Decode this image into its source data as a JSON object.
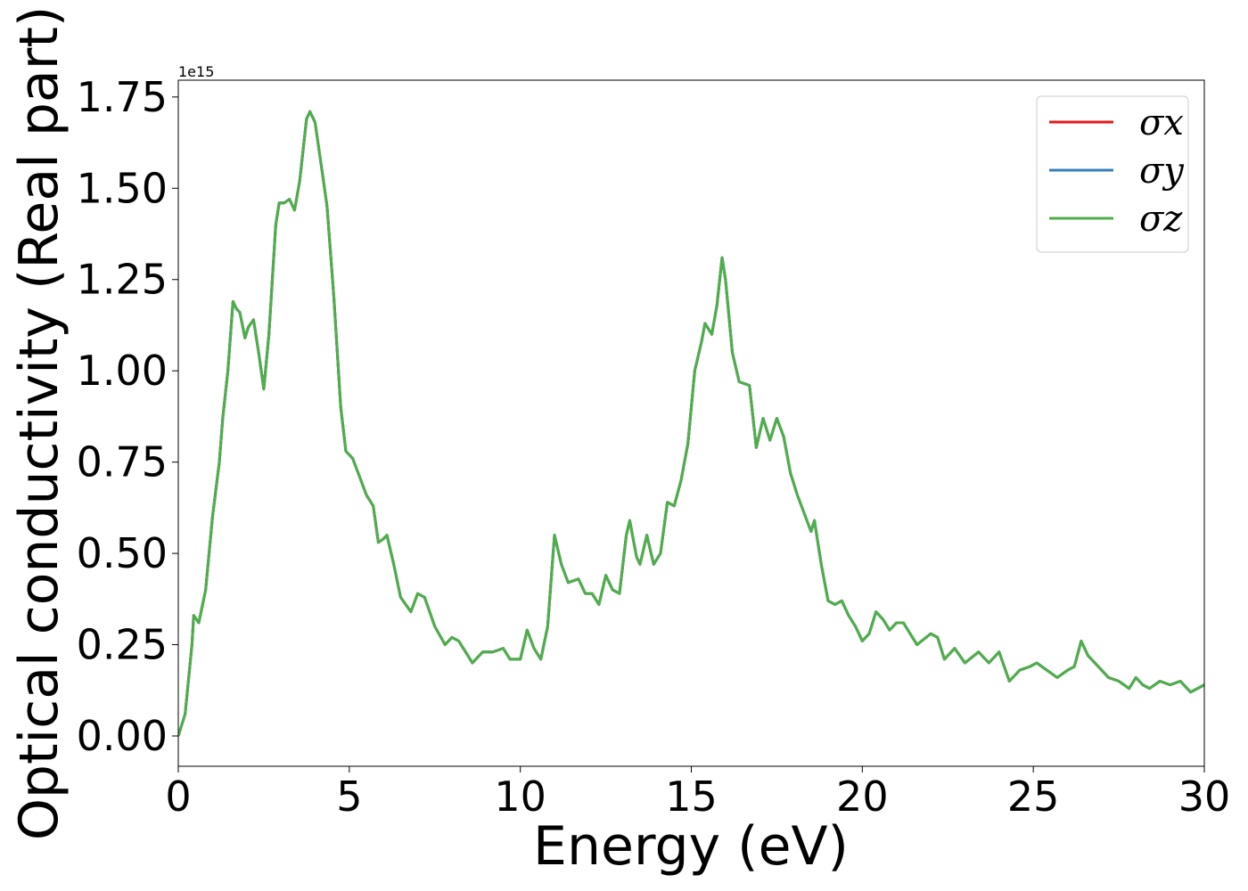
{
  "chart_data": {
    "type": "line",
    "x_label": "Energy (eV)",
    "y_label": "Optical conductivity (Real part)",
    "y_offset_label": "1e15",
    "xlim": [
      0,
      30
    ],
    "ylim": [
      -0.083,
      1.796
    ],
    "xticks": [
      0,
      5,
      10,
      15,
      20,
      25,
      30
    ],
    "yticks": [
      {
        "value": 0,
        "label": "0.00"
      },
      {
        "value": 0.25,
        "label": "0.25"
      },
      {
        "value": 0.5,
        "label": "0.50"
      },
      {
        "value": 0.75,
        "label": "0.75"
      },
      {
        "value": 1,
        "label": "1.00"
      },
      {
        "value": 1.25,
        "label": "1.25"
      },
      {
        "value": 1.5,
        "label": "1.50"
      },
      {
        "value": 1.75,
        "label": "1.75"
      }
    ],
    "grid": false,
    "legend": "upper right",
    "x": [
      0,
      0.2,
      0.4,
      0.45,
      0.6,
      0.8,
      1.0,
      1.2,
      1.3,
      1.45,
      1.6,
      1.7,
      1.8,
      1.95,
      2.05,
      2.2,
      2.35,
      2.5,
      2.65,
      2.85,
      2.95,
      3.1,
      3.25,
      3.4,
      3.55,
      3.75,
      3.85,
      4.0,
      4.2,
      4.35,
      4.55,
      4.75,
      4.9,
      5.1,
      5.3,
      5.5,
      5.7,
      5.85,
      6.0,
      6.1,
      6.3,
      6.5,
      6.8,
      7.0,
      7.2,
      7.5,
      7.8,
      8.0,
      8.2,
      8.4,
      8.6,
      8.9,
      9.2,
      9.5,
      9.7,
      10.0,
      10.2,
      10.4,
      10.6,
      10.8,
      11.0,
      11.2,
      11.4,
      11.7,
      11.9,
      12.1,
      12.3,
      12.5,
      12.7,
      12.9,
      13.1,
      13.2,
      13.4,
      13.5,
      13.7,
      13.9,
      14.1,
      14.3,
      14.5,
      14.7,
      14.9,
      15.1,
      15.3,
      15.4,
      15.6,
      15.75,
      15.9,
      16.0,
      16.2,
      16.4,
      16.7,
      16.9,
      17.1,
      17.3,
      17.5,
      17.7,
      17.9,
      18.1,
      18.3,
      18.5,
      18.6,
      18.8,
      19.0,
      19.2,
      19.4,
      19.6,
      19.8,
      20.0,
      20.2,
      20.4,
      20.6,
      20.8,
      21.0,
      21.2,
      21.6,
      22.0,
      22.2,
      22.4,
      22.7,
      23.0,
      23.4,
      23.7,
      24.0,
      24.3,
      24.6,
      24.9,
      25.1,
      25.4,
      25.7,
      26.0,
      26.2,
      26.4,
      26.6,
      26.9,
      27.2,
      27.5,
      27.8,
      28.0,
      28.2,
      28.4,
      28.7,
      29.0,
      29.3,
      29.6,
      30.0
    ],
    "series": [
      {
        "name": "σx",
        "color": "#e41a1c",
        "values": [
          0,
          0.06,
          0.25,
          0.33,
          0.31,
          0.4,
          0.6,
          0.75,
          0.87,
          1.0,
          1.19,
          1.17,
          1.16,
          1.09,
          1.12,
          1.14,
          1.05,
          0.95,
          1.1,
          1.4,
          1.46,
          1.46,
          1.47,
          1.44,
          1.52,
          1.69,
          1.71,
          1.68,
          1.55,
          1.45,
          1.2,
          0.9,
          0.78,
          0.76,
          0.71,
          0.66,
          0.63,
          0.53,
          0.54,
          0.55,
          0.47,
          0.38,
          0.34,
          0.39,
          0.38,
          0.3,
          0.25,
          0.27,
          0.26,
          0.23,
          0.2,
          0.23,
          0.23,
          0.24,
          0.21,
          0.21,
          0.29,
          0.24,
          0.21,
          0.3,
          0.55,
          0.47,
          0.42,
          0.43,
          0.39,
          0.39,
          0.36,
          0.44,
          0.4,
          0.39,
          0.55,
          0.59,
          0.49,
          0.47,
          0.55,
          0.47,
          0.5,
          0.64,
          0.63,
          0.7,
          0.8,
          1.0,
          1.08,
          1.13,
          1.1,
          1.18,
          1.31,
          1.25,
          1.05,
          0.97,
          0.96,
          0.79,
          0.87,
          0.81,
          0.87,
          0.82,
          0.72,
          0.66,
          0.61,
          0.56,
          0.59,
          0.47,
          0.37,
          0.36,
          0.37,
          0.33,
          0.3,
          0.26,
          0.28,
          0.34,
          0.32,
          0.29,
          0.31,
          0.31,
          0.25,
          0.28,
          0.27,
          0.21,
          0.24,
          0.2,
          0.23,
          0.2,
          0.23,
          0.15,
          0.18,
          0.19,
          0.2,
          0.18,
          0.16,
          0.18,
          0.19,
          0.26,
          0.22,
          0.19,
          0.16,
          0.15,
          0.13,
          0.16,
          0.14,
          0.13,
          0.15,
          0.14,
          0.15,
          0.12,
          0.14
        ]
      },
      {
        "name": "σy",
        "color": "#377eb8",
        "values": [
          0,
          0.06,
          0.25,
          0.33,
          0.31,
          0.4,
          0.6,
          0.75,
          0.87,
          1.0,
          1.19,
          1.17,
          1.16,
          1.09,
          1.12,
          1.14,
          1.05,
          0.95,
          1.1,
          1.4,
          1.46,
          1.46,
          1.47,
          1.44,
          1.52,
          1.69,
          1.71,
          1.68,
          1.55,
          1.45,
          1.2,
          0.9,
          0.78,
          0.76,
          0.71,
          0.66,
          0.63,
          0.53,
          0.54,
          0.55,
          0.47,
          0.38,
          0.34,
          0.39,
          0.38,
          0.3,
          0.25,
          0.27,
          0.26,
          0.23,
          0.2,
          0.23,
          0.23,
          0.24,
          0.21,
          0.21,
          0.29,
          0.24,
          0.21,
          0.3,
          0.55,
          0.47,
          0.42,
          0.43,
          0.39,
          0.39,
          0.36,
          0.44,
          0.4,
          0.39,
          0.55,
          0.59,
          0.49,
          0.47,
          0.55,
          0.47,
          0.5,
          0.64,
          0.63,
          0.7,
          0.8,
          1.0,
          1.08,
          1.13,
          1.1,
          1.18,
          1.31,
          1.25,
          1.05,
          0.97,
          0.96,
          0.79,
          0.87,
          0.81,
          0.87,
          0.82,
          0.72,
          0.66,
          0.61,
          0.56,
          0.59,
          0.47,
          0.37,
          0.36,
          0.37,
          0.33,
          0.3,
          0.26,
          0.28,
          0.34,
          0.32,
          0.29,
          0.31,
          0.31,
          0.25,
          0.28,
          0.27,
          0.21,
          0.24,
          0.2,
          0.23,
          0.2,
          0.23,
          0.15,
          0.18,
          0.19,
          0.2,
          0.18,
          0.16,
          0.18,
          0.19,
          0.26,
          0.22,
          0.19,
          0.16,
          0.15,
          0.13,
          0.16,
          0.14,
          0.13,
          0.15,
          0.14,
          0.15,
          0.12,
          0.14
        ]
      },
      {
        "name": "σz",
        "color": "#4daf4a",
        "values": [
          0,
          0.06,
          0.25,
          0.33,
          0.31,
          0.4,
          0.6,
          0.75,
          0.87,
          1.0,
          1.19,
          1.17,
          1.16,
          1.09,
          1.12,
          1.14,
          1.05,
          0.95,
          1.1,
          1.4,
          1.46,
          1.46,
          1.47,
          1.44,
          1.52,
          1.69,
          1.71,
          1.68,
          1.55,
          1.45,
          1.2,
          0.9,
          0.78,
          0.76,
          0.71,
          0.66,
          0.63,
          0.53,
          0.54,
          0.55,
          0.47,
          0.38,
          0.34,
          0.39,
          0.38,
          0.3,
          0.25,
          0.27,
          0.26,
          0.23,
          0.2,
          0.23,
          0.23,
          0.24,
          0.21,
          0.21,
          0.29,
          0.24,
          0.21,
          0.3,
          0.55,
          0.47,
          0.42,
          0.43,
          0.39,
          0.39,
          0.36,
          0.44,
          0.4,
          0.39,
          0.55,
          0.59,
          0.49,
          0.47,
          0.55,
          0.47,
          0.5,
          0.64,
          0.63,
          0.7,
          0.8,
          1.0,
          1.08,
          1.13,
          1.1,
          1.18,
          1.31,
          1.25,
          1.05,
          0.97,
          0.96,
          0.79,
          0.87,
          0.81,
          0.87,
          0.82,
          0.72,
          0.66,
          0.61,
          0.56,
          0.59,
          0.47,
          0.37,
          0.36,
          0.37,
          0.33,
          0.3,
          0.26,
          0.28,
          0.34,
          0.32,
          0.29,
          0.31,
          0.31,
          0.25,
          0.28,
          0.27,
          0.21,
          0.24,
          0.2,
          0.23,
          0.2,
          0.23,
          0.15,
          0.18,
          0.19,
          0.2,
          0.18,
          0.16,
          0.18,
          0.19,
          0.26,
          0.22,
          0.19,
          0.16,
          0.15,
          0.13,
          0.16,
          0.14,
          0.13,
          0.15,
          0.14,
          0.15,
          0.12,
          0.14
        ]
      }
    ]
  }
}
